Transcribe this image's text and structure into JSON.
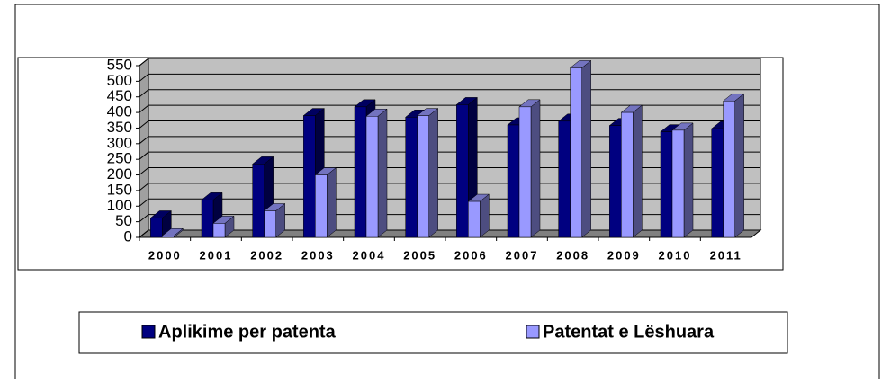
{
  "chart_data": {
    "type": "bar3d",
    "categories": [
      "2000",
      "2001",
      "2002",
      "2003",
      "2004",
      "2005",
      "2006",
      "2007",
      "2008",
      "2009",
      "2010",
      "2011"
    ],
    "series": [
      {
        "name": "Aplikime per patenta",
        "color": "#000080",
        "values": [
          62,
          120,
          235,
          390,
          418,
          385,
          425,
          360,
          372,
          358,
          338,
          348
        ]
      },
      {
        "name": "Patentat e Lëshuara",
        "color": "#9999ff",
        "values": [
          5,
          45,
          85,
          200,
          388,
          390,
          115,
          418,
          543,
          400,
          343,
          437
        ]
      }
    ],
    "ylim": [
      0,
      550
    ],
    "yticks": [
      0,
      50,
      100,
      150,
      200,
      250,
      300,
      350,
      400,
      450,
      500,
      550
    ],
    "grid": true,
    "legend": "bottom"
  }
}
